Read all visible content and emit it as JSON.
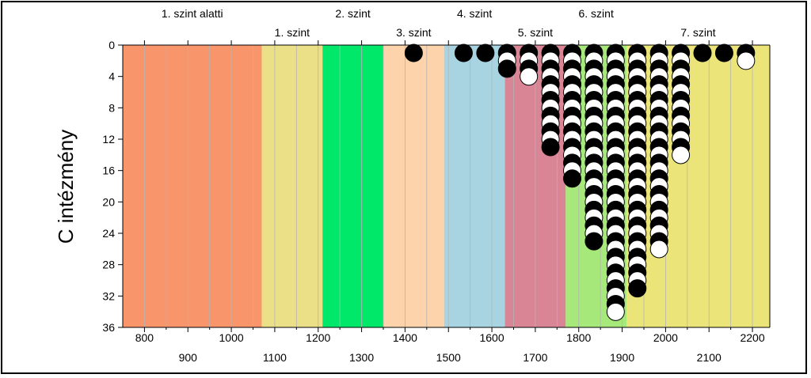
{
  "chart_data": {
    "type": "scatter",
    "title": "",
    "xlabel": "",
    "ylabel": "C intézmény",
    "xlim": [
      750,
      2240
    ],
    "ylim": [
      36,
      0
    ],
    "yticks": [
      0,
      4,
      8,
      12,
      16,
      20,
      24,
      28,
      32,
      36
    ],
    "xticks_top_row": [
      800,
      1000,
      1200,
      1400,
      1600,
      1800,
      2000,
      2200
    ],
    "xticks_bottom_row": [
      900,
      1100,
      1300,
      1500,
      1700,
      1900,
      2100
    ],
    "grid": "vertical",
    "levels": [
      {
        "label": "1. szint alatti",
        "from": 750,
        "to": 1070,
        "color": "#f9956b",
        "label_row": "upper"
      },
      {
        "label": "1. szint",
        "from": 1070,
        "to": 1210,
        "color": "#ebdf87",
        "label_row": "lower"
      },
      {
        "label": "2. szint",
        "from": 1210,
        "to": 1350,
        "color": "#00e86a",
        "label_row": "upper"
      },
      {
        "label": "3. szint",
        "from": 1350,
        "to": 1490,
        "color": "#fcd3aa",
        "label_row": "lower"
      },
      {
        "label": "4. szint",
        "from": 1490,
        "to": 1630,
        "color": "#a8d4e2",
        "label_row": "upper"
      },
      {
        "label": "5. szint",
        "from": 1630,
        "to": 1770,
        "color": "#da8596",
        "label_row": "lower"
      },
      {
        "label": "6. szint",
        "from": 1770,
        "to": 1910,
        "color": "#a6e87a",
        "label_row": "upper"
      },
      {
        "label": "7. szint",
        "from": 1910,
        "to": 2240,
        "color": "#ebe579",
        "label_row": "lower"
      }
    ],
    "columns": [
      {
        "x": 1420,
        "count": 1,
        "fill": "black"
      },
      {
        "x": 1535,
        "count": 1,
        "fill": "black"
      },
      {
        "x": 1585,
        "count": 1,
        "fill": "black"
      },
      {
        "x": 1635,
        "count": 3,
        "fill": "alternating"
      },
      {
        "x": 1685,
        "count": 4,
        "fill": "alternating"
      },
      {
        "x": 1735,
        "count": 13,
        "fill": "alternating"
      },
      {
        "x": 1785,
        "count": 17,
        "fill": "alternating"
      },
      {
        "x": 1835,
        "count": 25,
        "fill": "alternating"
      },
      {
        "x": 1885,
        "count": 34,
        "fill": "alternating"
      },
      {
        "x": 1935,
        "count": 31,
        "fill": "alternating"
      },
      {
        "x": 1985,
        "count": 26,
        "fill": "alternating"
      },
      {
        "x": 2035,
        "count": 14,
        "fill": "alternating"
      },
      {
        "x": 2085,
        "count": 1,
        "fill": "black"
      },
      {
        "x": 2135,
        "count": 1,
        "fill": "black"
      },
      {
        "x": 2185,
        "count": 2,
        "fill": "alternating"
      }
    ],
    "colors": {
      "marker_dark": "#000000",
      "marker_light": "#ffffff",
      "grid": "#b4b4b4"
    }
  }
}
